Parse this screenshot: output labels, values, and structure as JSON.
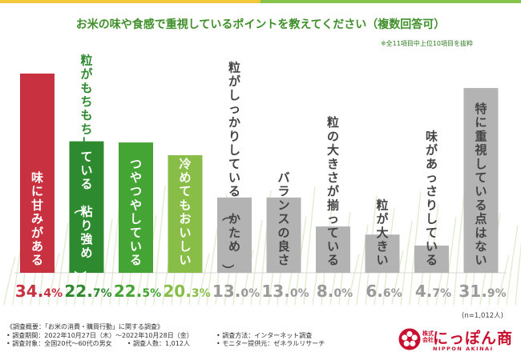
{
  "title": "お米の味や食感で重視しているポイントを教えてください（複数回答可）",
  "note": "※全11項目中上位10項目を抜粋",
  "sample_size": "(n=1,012人)",
  "colors": {
    "red": "#c8313f",
    "green_dark": "#2e8a2e",
    "green_mid": "#45a534",
    "green_light": "#88bd47",
    "gray": "#b3b3b3",
    "gray_text": "#9a9a9a",
    "white": "#ffffff"
  },
  "chart_data": {
    "type": "bar",
    "title": "お米の味や食感で重視しているポイントを教えてください（複数回答可）",
    "xlabel": "",
    "ylabel": "",
    "unit": "%",
    "ylim": [
      0,
      40
    ],
    "categories": [
      "味に甘みがある",
      "粒がもちもちしている（粘り強め）",
      "つやつやしている",
      "冷めてもおいしい",
      "粒がしっかりしている（かため）",
      "バランスの良さ",
      "粒の大きさが揃っている",
      "粒が大きい",
      "味があっさりしている",
      "特に重視している点はない"
    ],
    "values": [
      34.4,
      22.7,
      22.5,
      20.3,
      13.0,
      13.0,
      8.0,
      6.6,
      4.7,
      31.9
    ],
    "value_labels": [
      "34.4",
      "22.7",
      "22.5",
      "20.3",
      "13.0",
      "13.0",
      "8.0",
      "6.6",
      "4.7",
      "31.9"
    ]
  },
  "footer": {
    "survey_overview": "《調査概要：「お米の消費・購買行動」に関する調査》",
    "survey_period": "• 調査期間：2022年10月27日（木）～2022年10月28日（金）",
    "survey_target": "• 調査対象：全国20代～60代の男女",
    "survey_count": "• 調査人数：1,012人",
    "survey_method": "• 調査方法：インターネット調査",
    "survey_provider": "• モニター提供元：ゼネラルリサーチ"
  },
  "brand": {
    "kabushiki": "株式",
    "kaisha": "会社",
    "name": "にっぽん商",
    "sub": "NIPPON AKINAI"
  }
}
